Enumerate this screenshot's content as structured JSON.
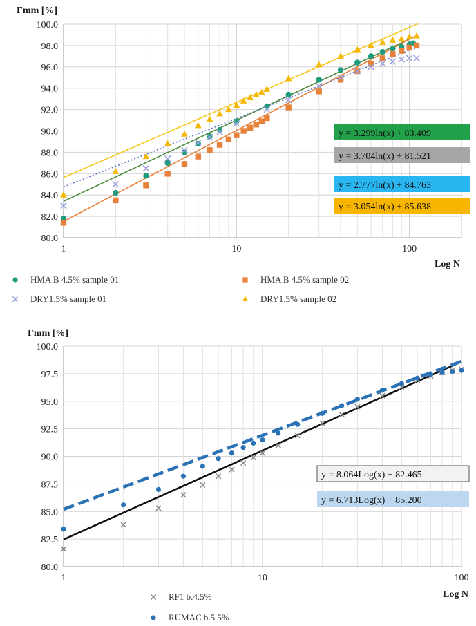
{
  "chart_data": [
    {
      "type": "scatter",
      "ylabel": "Γmm [%]",
      "xlabel": "Log N",
      "xscale": "log",
      "xlim": [
        1,
        200
      ],
      "ylim": [
        80.0,
        100.0
      ],
      "x_ticks": [
        "1",
        "10",
        "100"
      ],
      "y_ticks": [
        "80.0",
        "82.0",
        "84.0",
        "86.0",
        "88.0",
        "90.0",
        "92.0",
        "94.0",
        "96.0",
        "98.0",
        "100.0"
      ],
      "grid": true,
      "legend_position": "bottom",
      "series": [
        {
          "name": "HMA B 4.5% sample 01",
          "marker": "circle",
          "color": "#1f9c7d",
          "x": [
            1,
            2,
            3,
            4,
            5,
            6,
            7,
            8,
            10,
            15,
            20,
            30,
            40,
            50,
            60,
            70,
            80,
            90,
            100,
            105
          ],
          "y": [
            81.8,
            84.2,
            85.8,
            87.0,
            88.0,
            88.8,
            89.5,
            90.1,
            90.9,
            92.3,
            93.4,
            94.8,
            95.7,
            96.4,
            97.0,
            97.4,
            97.7,
            97.9,
            98.1,
            98.2
          ],
          "trendline": {
            "slope": 3.299,
            "intercept": 83.409,
            "color": "#4a8a3a"
          }
        },
        {
          "name": "HMA B 4.5% sample 02",
          "marker": "square",
          "color": "#e8823a",
          "x": [
            1,
            2,
            3,
            4,
            5,
            6,
            7,
            8,
            9,
            10,
            11,
            12,
            13,
            14,
            15,
            20,
            30,
            40,
            50,
            60,
            70,
            80,
            90,
            100,
            110
          ],
          "y": [
            81.4,
            83.5,
            84.9,
            86.0,
            86.9,
            87.6,
            88.2,
            88.7,
            89.2,
            89.6,
            90.0,
            90.3,
            90.6,
            90.9,
            91.2,
            92.2,
            93.7,
            94.8,
            95.6,
            96.3,
            96.8,
            97.2,
            97.5,
            97.8,
            98.0
          ],
          "trendline": {
            "slope": 3.704,
            "intercept": 81.521,
            "color": "#e8823a"
          }
        },
        {
          "name": "DRY1.5% sample 01",
          "marker": "x",
          "color": "#9aa2dc",
          "x": [
            1,
            2,
            3,
            4,
            5,
            6,
            7,
            8,
            10,
            15,
            20,
            30,
            40,
            50,
            60,
            70,
            80,
            90,
            100,
            110
          ],
          "y": [
            83.0,
            85.0,
            86.5,
            87.4,
            88.2,
            88.9,
            89.4,
            89.9,
            90.7,
            92.0,
            92.9,
            94.2,
            95.0,
            95.6,
            96.0,
            96.3,
            96.5,
            96.7,
            96.8,
            96.8
          ],
          "trendline": {
            "slope": 2.777,
            "intercept": 84.763,
            "color": "#5a74c8"
          }
        },
        {
          "name": "DRY1.5% sample 02",
          "marker": "triangle",
          "color": "#f5b800",
          "x": [
            1,
            2,
            3,
            4,
            5,
            6,
            7,
            8,
            9,
            10,
            11,
            12,
            13,
            14,
            15,
            20,
            30,
            40,
            50,
            60,
            70,
            80,
            90,
            100,
            110
          ],
          "y": [
            84.0,
            86.2,
            87.6,
            88.8,
            89.7,
            90.5,
            91.1,
            91.6,
            92.0,
            92.4,
            92.8,
            93.1,
            93.4,
            93.6,
            93.9,
            94.9,
            96.2,
            97.0,
            97.6,
            98.0,
            98.3,
            98.5,
            98.6,
            98.8,
            98.9
          ],
          "trendline": {
            "slope": 3.054,
            "intercept": 85.638,
            "color": "#f5c518"
          }
        }
      ],
      "equations": [
        {
          "text": "y = 3.299ln(x) + 83.409",
          "bg": "#22a04a"
        },
        {
          "text": "y = 3.704ln(x) + 81.521",
          "bg": "#a6a6a6"
        },
        {
          "text": "y = 2.777ln(x) + 84.763",
          "bg": "#29b6f0"
        },
        {
          "text": "y = 3.054ln(x) + 85.638",
          "bg": "#f7b500"
        }
      ]
    },
    {
      "type": "scatter",
      "ylabel": "Γmm [%]",
      "xlabel": "Log N",
      "xscale": "log",
      "xlim": [
        1,
        100
      ],
      "ylim": [
        80.0,
        100.0
      ],
      "x_ticks": [
        "1",
        "10",
        "100"
      ],
      "y_ticks": [
        "80.0",
        "82.5",
        "85.0",
        "87.5",
        "90.0",
        "92.5",
        "95.0",
        "97.5",
        "100.0"
      ],
      "grid": true,
      "legend_position": "bottom",
      "series": [
        {
          "name": "RF1 b.4.5%",
          "marker": "x",
          "color": "#8a8a8a",
          "x": [
            1,
            2,
            3,
            4,
            5,
            6,
            7,
            8,
            9,
            10,
            12,
            15,
            20,
            25,
            30,
            40,
            50,
            60,
            70,
            80,
            90,
            100
          ],
          "y": [
            81.6,
            83.8,
            85.3,
            86.5,
            87.4,
            88.2,
            88.8,
            89.4,
            89.9,
            90.3,
            91.0,
            91.9,
            93.0,
            93.8,
            94.5,
            95.5,
            96.3,
            96.9,
            97.3,
            97.6,
            97.8,
            97.9
          ],
          "trendline": {
            "slope": 8.064,
            "intercept": 82.465,
            "color": "#111111",
            "style": "solid"
          }
        },
        {
          "name": "RUMAC b.5.5%",
          "marker": "circle",
          "color": "#2a72b5",
          "x": [
            1,
            2,
            3,
            4,
            5,
            6,
            7,
            8,
            9,
            10,
            12,
            15,
            20,
            25,
            30,
            40,
            50,
            60,
            70,
            80,
            90,
            100
          ],
          "y": [
            83.4,
            85.6,
            87.0,
            88.2,
            89.1,
            89.8,
            90.3,
            90.8,
            91.2,
            91.5,
            92.1,
            92.9,
            93.9,
            94.6,
            95.2,
            96.0,
            96.6,
            97.1,
            97.4,
            97.6,
            97.7,
            97.8
          ],
          "trendline": {
            "slope": 6.713,
            "intercept": 85.2,
            "color": "#2a72b5",
            "style": "dashed"
          }
        }
      ],
      "equations": [
        {
          "text": "y = 8.064Log(x) + 82.465",
          "bg": "#f2f2f2"
        },
        {
          "text": "y = 6.713Log(x) + 85.200",
          "bg": "#bcd7ee"
        }
      ]
    }
  ]
}
